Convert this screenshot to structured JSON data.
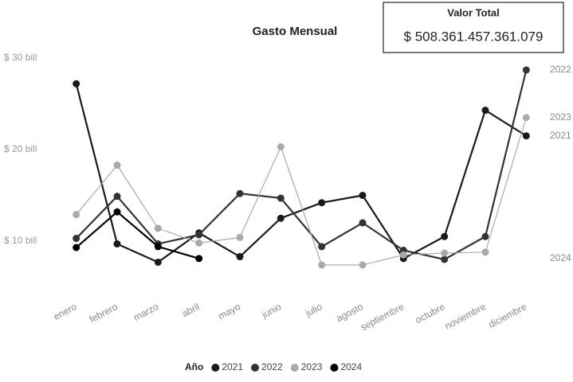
{
  "chart_data": {
    "type": "line",
    "title": "Gasto Mensual",
    "kpi": {
      "label": "Valor Total",
      "value": "$ 508.361.457.361.079"
    },
    "legend_title": "Año",
    "categories": [
      "enero",
      "febrero",
      "marzo",
      "abril",
      "mayo",
      "junio",
      "julio",
      "agosto",
      "septiembre",
      "octubre",
      "noviembre",
      "diciembre"
    ],
    "series": [
      {
        "name": "2021",
        "color": "#1a1a1a",
        "values": [
          27.2,
          9.7,
          7.7,
          10.9,
          8.3,
          12.5,
          14.2,
          15.0,
          8.1,
          10.5,
          24.3,
          21.5
        ]
      },
      {
        "name": "2022",
        "color": "#333333",
        "values": [
          10.3,
          14.9,
          9.7,
          10.7,
          15.2,
          14.7,
          9.4,
          12.0,
          9.0,
          8.0,
          10.5,
          28.7
        ]
      },
      {
        "name": "2023",
        "color": "#aaaaaa",
        "values": [
          12.9,
          18.3,
          11.4,
          9.8,
          10.4,
          20.3,
          7.4,
          7.4,
          8.5,
          8.7,
          8.8,
          23.5
        ]
      },
      {
        "name": "2024",
        "color": "#000000",
        "values": [
          9.3,
          13.2,
          9.4,
          8.1,
          null,
          null,
          null,
          null,
          null,
          null,
          null,
          null
        ]
      }
    ],
    "ylim": [
      5,
      30
    ],
    "yticks": [
      {
        "value": 10,
        "label": "$ 10 bill"
      },
      {
        "value": 20,
        "label": "$ 20 bill"
      },
      {
        "value": 30,
        "label": "$ 30 bill"
      }
    ],
    "grid": false
  }
}
